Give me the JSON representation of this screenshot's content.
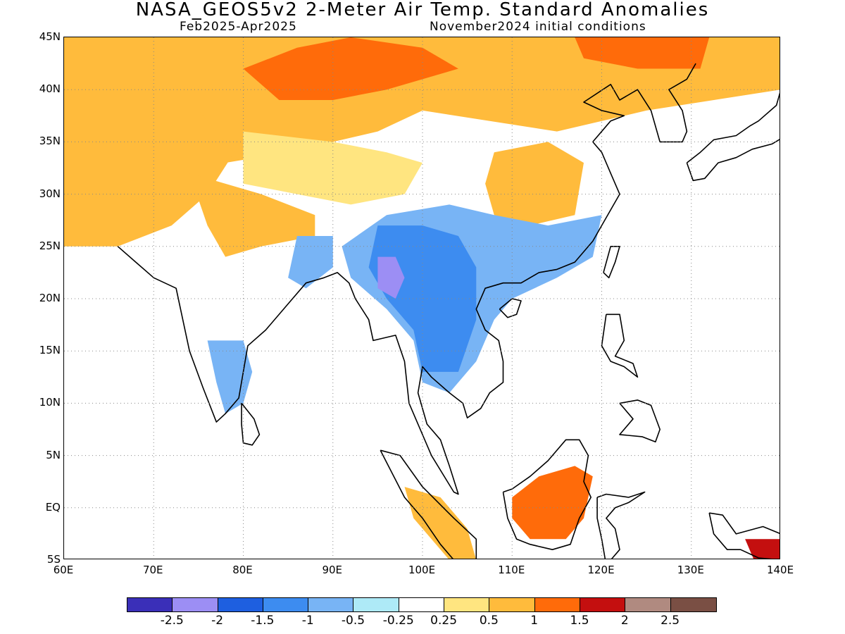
{
  "title": "NASA_GEOS5v2 2-Meter Air Temp. Standard Anomalies",
  "subtitle_left": "Feb2025-Apr2025",
  "subtitle_right": "November2024 initial conditions",
  "lat_labels": [
    "45N",
    "40N",
    "35N",
    "30N",
    "25N",
    "20N",
    "15N",
    "10N",
    "5N",
    "EQ",
    "5S"
  ],
  "lat_values": [
    45,
    40,
    35,
    30,
    25,
    20,
    15,
    10,
    5,
    0,
    -5
  ],
  "lon_labels": [
    "60E",
    "70E",
    "80E",
    "90E",
    "100E",
    "110E",
    "120E",
    "130E",
    "140E"
  ],
  "lon_values": [
    60,
    70,
    80,
    90,
    100,
    110,
    120,
    130,
    140
  ],
  "extent": {
    "lon_min": 60,
    "lon_max": 140,
    "lat_min": -5,
    "lat_max": 45
  },
  "colorbar": {
    "colors": [
      "#3a2fb8",
      "#9c8ef4",
      "#1e5fe0",
      "#3d8cf0",
      "#78b4f5",
      "#aeeaf7",
      "#ffffff",
      "#ffe580",
      "#ffbb3c",
      "#ff6b0a",
      "#c40f0f",
      "#b08a80",
      "#7a4f44"
    ],
    "labels": [
      "-2.5",
      "-2",
      "-1.5",
      "-1",
      "-0.5",
      "-0.25",
      "0.25",
      "0.5",
      "1",
      "1.5",
      "2",
      "2.5"
    ]
  },
  "anomaly_regions": [
    {
      "name": "north-belt",
      "level": "0.5 to 1",
      "color": "#ffbb3c",
      "poly": [
        [
          60,
          45
        ],
        [
          140,
          45
        ],
        [
          140,
          40
        ],
        [
          125,
          38
        ],
        [
          115,
          36
        ],
        [
          100,
          38
        ],
        [
          95,
          36
        ],
        [
          85,
          34
        ],
        [
          78,
          33
        ],
        [
          72,
          32
        ],
        [
          60,
          33
        ]
      ]
    },
    {
      "name": "mongolia-core",
      "level": "1 to 1.5",
      "color": "#ff6b0a",
      "poly": [
        [
          80,
          42
        ],
        [
          86,
          44
        ],
        [
          92,
          45
        ],
        [
          100,
          44
        ],
        [
          104,
          42
        ],
        [
          96,
          40
        ],
        [
          90,
          39
        ],
        [
          84,
          39
        ]
      ]
    },
    {
      "name": "northeast-core",
      "level": "1 to 1.5",
      "color": "#ff6b0a",
      "poly": [
        [
          117,
          45
        ],
        [
          132,
          45
        ],
        [
          131,
          42
        ],
        [
          124,
          42
        ],
        [
          118,
          43
        ]
      ]
    },
    {
      "name": "iran-afghan",
      "level": "0.5 to 1",
      "color": "#ffbb3c",
      "poly": [
        [
          60,
          38
        ],
        [
          75,
          38
        ],
        [
          79,
          34
        ],
        [
          76,
          30
        ],
        [
          72,
          27
        ],
        [
          66,
          25
        ],
        [
          60,
          25
        ]
      ]
    },
    {
      "name": "north-india",
      "level": "0.5 to 1",
      "color": "#ffbb3c",
      "poly": [
        [
          74,
          32
        ],
        [
          82,
          30
        ],
        [
          88,
          28
        ],
        [
          88,
          26
        ],
        [
          82,
          25
        ],
        [
          78,
          24
        ],
        [
          76,
          27
        ]
      ]
    },
    {
      "name": "tibet-yellow",
      "level": "0.25 to 0.5",
      "color": "#ffe580",
      "poly": [
        [
          80,
          36
        ],
        [
          90,
          35
        ],
        [
          96,
          34
        ],
        [
          100,
          33
        ],
        [
          98,
          30
        ],
        [
          92,
          29
        ],
        [
          86,
          30
        ],
        [
          80,
          31
        ]
      ]
    },
    {
      "name": "south-china",
      "level": "0.5 to 1",
      "color": "#ffbb3c",
      "poly": [
        [
          108,
          34
        ],
        [
          114,
          35
        ],
        [
          118,
          33
        ],
        [
          117,
          28
        ],
        [
          112,
          27
        ],
        [
          108,
          28
        ],
        [
          107,
          31
        ]
      ]
    },
    {
      "name": "yunnan-blue",
      "level": "-1 to -0.5",
      "color": "#78b4f5",
      "poly": [
        [
          96,
          28
        ],
        [
          103,
          29
        ],
        [
          108,
          28
        ],
        [
          114,
          27
        ],
        [
          120,
          28
        ],
        [
          119,
          24
        ],
        [
          115,
          22
        ],
        [
          110,
          20
        ],
        [
          108,
          18
        ],
        [
          106,
          14
        ],
        [
          103,
          11
        ],
        [
          100,
          12
        ],
        [
          99,
          16
        ],
        [
          96,
          19
        ],
        [
          92,
          22
        ],
        [
          91,
          25
        ]
      ]
    },
    {
      "name": "yunnan-core",
      "level": "-1.5 to -1",
      "color": "#3d8cf0",
      "poly": [
        [
          95,
          27
        ],
        [
          100,
          27
        ],
        [
          104,
          26
        ],
        [
          106,
          23
        ],
        [
          106,
          18
        ],
        [
          104,
          13
        ],
        [
          100,
          13
        ],
        [
          99,
          17
        ],
        [
          96,
          20
        ],
        [
          94,
          23
        ]
      ]
    },
    {
      "name": "myanmar-core",
      "level": "-2 to -1.5",
      "color": "#9c8ef4",
      "poly": [
        [
          95,
          24
        ],
        [
          97,
          24
        ],
        [
          98,
          22
        ],
        [
          97,
          20
        ],
        [
          95,
          21
        ]
      ]
    },
    {
      "name": "east-india-blue",
      "level": "-1 to -0.5",
      "color": "#78b4f5",
      "poly": [
        [
          86,
          26
        ],
        [
          90,
          26
        ],
        [
          90,
          23
        ],
        [
          87,
          21
        ],
        [
          85,
          22
        ]
      ]
    },
    {
      "name": "south-india-blue",
      "level": "-1 to -0.5",
      "color": "#78b4f5",
      "poly": [
        [
          76,
          16
        ],
        [
          80,
          16
        ],
        [
          81,
          13
        ],
        [
          80,
          10
        ],
        [
          78,
          9
        ],
        [
          77,
          12
        ]
      ]
    },
    {
      "name": "borneo-orange",
      "level": "1 to 1.5",
      "color": "#ff6b0a",
      "poly": [
        [
          110,
          1
        ],
        [
          113,
          3
        ],
        [
          117,
          4
        ],
        [
          119,
          3
        ],
        [
          118,
          -1
        ],
        [
          116,
          -3
        ],
        [
          112,
          -3
        ],
        [
          110,
          -1
        ]
      ]
    },
    {
      "name": "sumatra-orange",
      "level": "0.5 to 1",
      "color": "#ffbb3c",
      "poly": [
        [
          98,
          2
        ],
        [
          102,
          1
        ],
        [
          105,
          -2
        ],
        [
          106,
          -5
        ],
        [
          103,
          -5
        ],
        [
          99,
          -1
        ]
      ]
    },
    {
      "name": "new-guinea",
      "level": "1.5 to 2",
      "color": "#c40f0f",
      "poly": [
        [
          136,
          -3
        ],
        [
          140,
          -3
        ],
        [
          140,
          -5
        ],
        [
          137,
          -5
        ]
      ]
    }
  ]
}
